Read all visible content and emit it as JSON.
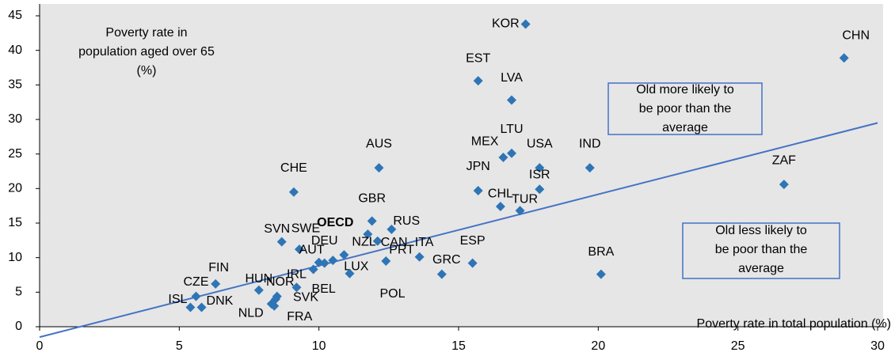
{
  "chart_data": {
    "type": "scatter",
    "labels": [
      "KOR",
      "CHN",
      "EST",
      "LVA",
      "LTU",
      "MEX",
      "USA",
      "IND",
      "AUS",
      "JPN",
      "ISR",
      "CHE",
      "ZAF",
      "CHL",
      "TUR",
      "GBR",
      "RUS",
      "OECD",
      "CAN",
      "NZL",
      "SVN",
      "SWE",
      "ITA",
      "ESP",
      "PRT",
      "DEU",
      "AUT",
      "LUX",
      "POL",
      "BEL",
      "GRC",
      "BRA",
      "FIN",
      "IRL",
      "HUN",
      "NOR",
      "CZE",
      "SVK",
      "NLD",
      "FRA",
      "ISL",
      "DNK"
    ],
    "x": [
      17.4,
      28.8,
      15.7,
      16.9,
      16.9,
      16.6,
      17.9,
      19.7,
      12.15,
      15.7,
      17.9,
      9.1,
      26.65,
      16.5,
      17.2,
      11.9,
      12.6,
      11.75,
      12.1,
      10.9,
      8.67,
      9.3,
      13.6,
      15.5,
      12.4,
      10.2,
      9.8,
      10.5,
      11.1,
      10.0,
      14.4,
      20.1,
      6.3,
      9.2,
      7.85,
      8.5,
      5.6,
      8.45,
      8.3,
      8.4,
      5.4,
      5.8
    ],
    "values": [
      43.8,
      38.9,
      35.6,
      32.8,
      25.1,
      24.5,
      23.0,
      23.0,
      23.0,
      19.7,
      19.9,
      19.5,
      20.6,
      17.4,
      16.8,
      15.3,
      14.1,
      13.4,
      12.4,
      10.4,
      12.3,
      11.2,
      10.1,
      9.2,
      9.5,
      9.2,
      8.3,
      9.6,
      7.7,
      9.3,
      7.6,
      7.6,
      6.2,
      5.7,
      5.3,
      4.4,
      4.4,
      4.0,
      3.3,
      3.0,
      2.8,
      2.8
    ],
    "highlight": "OECD",
    "color": "#2e75b6",
    "trend": {
      "x": [
        0,
        30
      ],
      "y": [
        -1.5,
        29.5
      ],
      "color": "#4472c4"
    },
    "xlim": [
      0,
      30
    ],
    "ylim": [
      0,
      45
    ],
    "xticks": [
      0,
      5,
      10,
      15,
      20,
      25,
      30
    ],
    "yticks": [
      0,
      5,
      10,
      15,
      20,
      25,
      30,
      35,
      40,
      45
    ],
    "xlabel": "Poverty rate in total population (%)",
    "ylabel": [
      "Poverty rate in",
      "population aged over 65",
      "(%)"
    ],
    "annotations": [
      {
        "lines": [
          "Old more likely to",
          "be poor than the",
          "average"
        ]
      },
      {
        "lines": [
          "Old less likely to",
          "be poor than the",
          "average"
        ]
      }
    ]
  }
}
